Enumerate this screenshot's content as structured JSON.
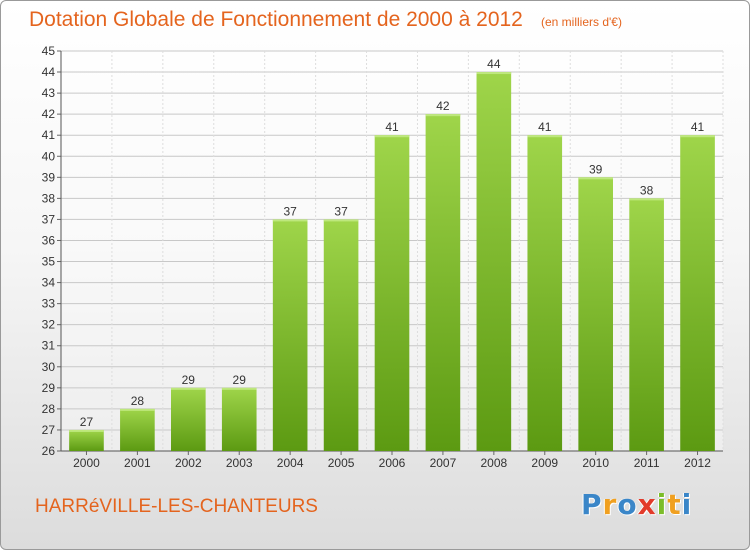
{
  "title": "Dotation Globale de Fonctionnement de 2000 à 2012",
  "subtitle": "(en milliers d'€)",
  "commune": "HARRéVILLE-LES-CHANTEURS",
  "logo": {
    "letters": [
      "P",
      "r",
      "o",
      "x",
      "i",
      "t",
      "i"
    ]
  },
  "colors": {
    "title": "#e4641e",
    "bar_top": "#9fd54a",
    "bar_bottom": "#5c9a12"
  },
  "chart_data": {
    "type": "bar",
    "categories": [
      "2000",
      "2001",
      "2002",
      "2003",
      "2004",
      "2005",
      "2006",
      "2007",
      "2008",
      "2009",
      "2010",
      "2011",
      "2012"
    ],
    "values": [
      27,
      28,
      29,
      29,
      37,
      37,
      41,
      42,
      44,
      41,
      39,
      38,
      41
    ],
    "value_labels": [
      "27",
      "28",
      "29",
      "29",
      "37",
      "37",
      "41",
      "42",
      "44",
      "41",
      "39",
      "38",
      "41"
    ],
    "ylim": [
      26,
      45
    ],
    "yticks": [
      "26",
      "27",
      "28",
      "29",
      "30",
      "31",
      "32",
      "33",
      "34",
      "35",
      "36",
      "37",
      "38",
      "39",
      "40",
      "41",
      "42",
      "43",
      "44",
      "45"
    ],
    "grid": true,
    "xlabel": "",
    "ylabel": ""
  }
}
